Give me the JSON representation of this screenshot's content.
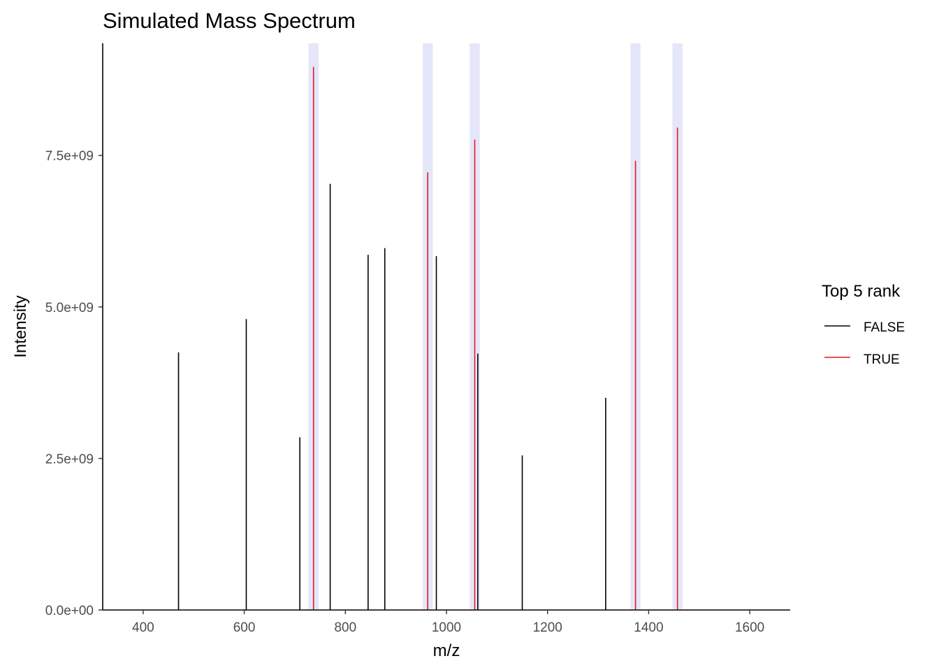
{
  "chart_data": {
    "type": "bar",
    "title": "Simulated Mass Spectrum",
    "xlabel": "m/z",
    "ylabel": "Intensity",
    "xlim": [
      320,
      1680
    ],
    "ylim": [
      0,
      9350000000
    ],
    "x_ticks": [
      400,
      600,
      800,
      1000,
      1200,
      1400,
      1600
    ],
    "x_tick_labels": [
      "400",
      "600",
      "800",
      "1000",
      "1200",
      "1400",
      "1600"
    ],
    "y_ticks": [
      0,
      2500000000,
      5000000000,
      7500000000
    ],
    "y_tick_labels": [
      "0.0e+00",
      "2.5e+09",
      "5.0e+09",
      "7.5e+09"
    ],
    "grid": false,
    "legend": {
      "title": "Top 5 rank",
      "placement": "right",
      "entries": [
        {
          "label": "FALSE",
          "color": "#000000"
        },
        {
          "label": "TRUE",
          "color": "#e41a1c"
        }
      ]
    },
    "highlight_color": "#e6e6fa",
    "highlight_halfwidth": 10,
    "series": [
      {
        "name": "FALSE",
        "color": "#000000",
        "x": [
          470,
          604,
          710,
          770,
          845,
          878,
          980,
          1062,
          1150,
          1315
        ],
        "y": [
          4250000000,
          4800000000,
          2850000000,
          7030000000,
          5860000000,
          5970000000,
          5840000000,
          4230000000,
          2550000000,
          3500000000
        ]
      },
      {
        "name": "TRUE",
        "color": "#e41a1c",
        "x": [
          737,
          963,
          1056,
          1374,
          1457
        ],
        "y": [
          8960000000,
          7220000000,
          7760000000,
          7410000000,
          7960000000
        ]
      }
    ]
  }
}
